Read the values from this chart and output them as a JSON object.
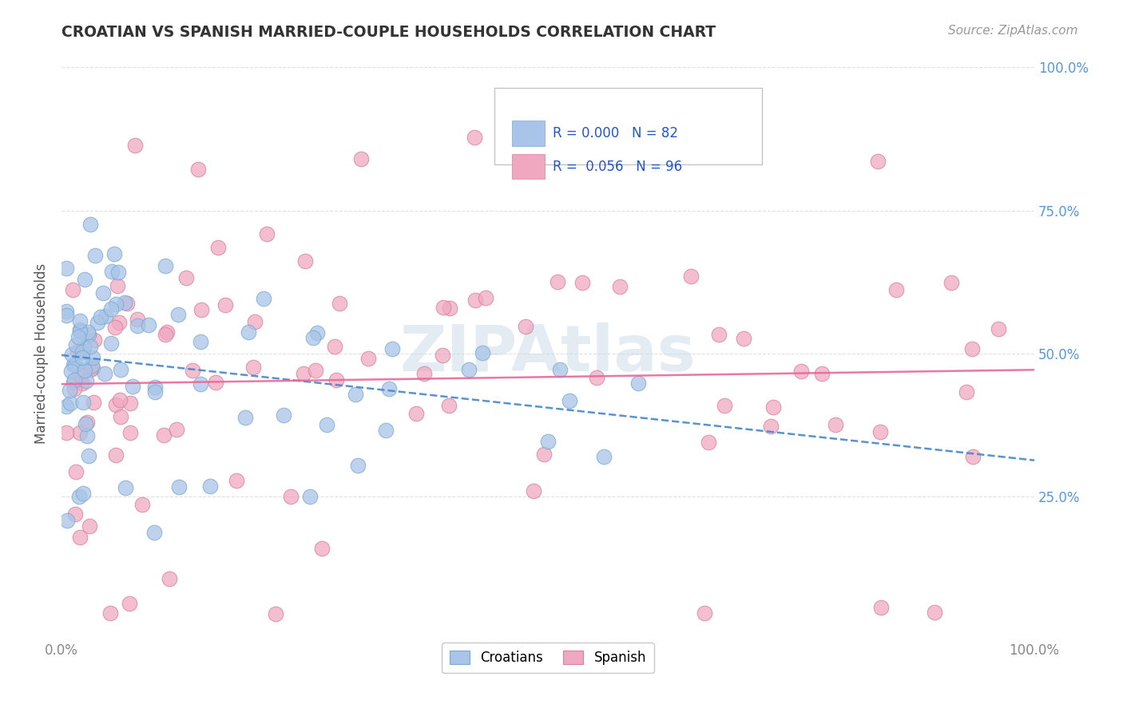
{
  "title": "CROATIAN VS SPANISH MARRIED-COUPLE HOUSEHOLDS CORRELATION CHART",
  "source": "Source: ZipAtlas.com",
  "ylabel": "Married-couple Households",
  "croatian_color": "#a8c4e8",
  "croatian_edge_color": "#7aaad0",
  "spanish_color": "#f0a8c0",
  "spanish_edge_color": "#d880a0",
  "trendline_croatian_color": "#4488cc",
  "trendline_spanish_color": "#e8689a",
  "watermark_color": "#c8d8e8",
  "background_color": "#ffffff",
  "grid_color": "#cccccc",
  "right_tick_color": "#5599dd",
  "axis_tick_color": "#888888",
  "title_color": "#333333",
  "source_color": "#999999",
  "legend_text_color": "#2255cc",
  "marker_size": 10,
  "n_croatian": 82,
  "n_spanish": 96
}
